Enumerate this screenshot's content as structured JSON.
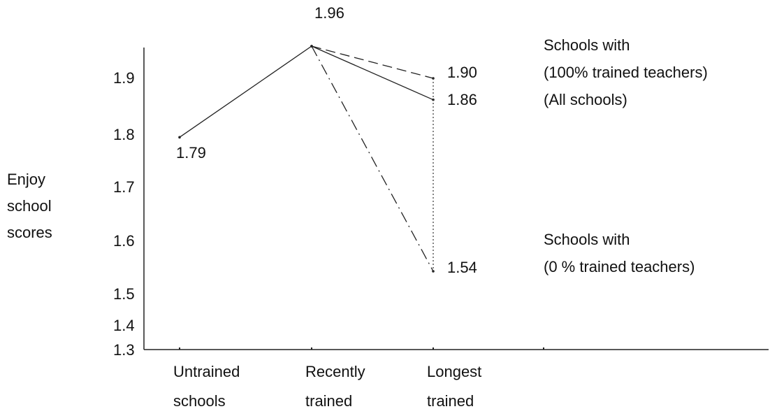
{
  "chart_data": {
    "type": "line",
    "ylabel": [
      "Enjoy",
      "school",
      "scores"
    ],
    "categories": [
      [
        "Untrained",
        "schools"
      ],
      [
        "Recently",
        "trained"
      ],
      [
        "Longest",
        "trained"
      ]
    ],
    "y_ticks": [
      "1.9",
      "1.8",
      "1.7",
      "1.6",
      "1.5",
      "1.4",
      "1.3"
    ],
    "series": [
      {
        "values": [
          1.79,
          1.96,
          1.86
        ],
        "label_lines": [
          "(All schools)"
        ],
        "style": "solid"
      },
      {
        "values": [
          null,
          1.96,
          1.9
        ],
        "label_lines": [
          "Schools with",
          "(100% trained teachers)"
        ],
        "style": "dashed"
      },
      {
        "values": [
          null,
          1.96,
          1.54
        ],
        "label_lines": [
          "Schools with",
          "(0 % trained teachers)"
        ],
        "style": "dash-dot"
      }
    ],
    "data_labels": [
      "1.79",
      "1.96",
      "1.90",
      "1.86",
      "1.54"
    ],
    "connector_style": "dotted",
    "grid": false,
    "legend": "right"
  }
}
